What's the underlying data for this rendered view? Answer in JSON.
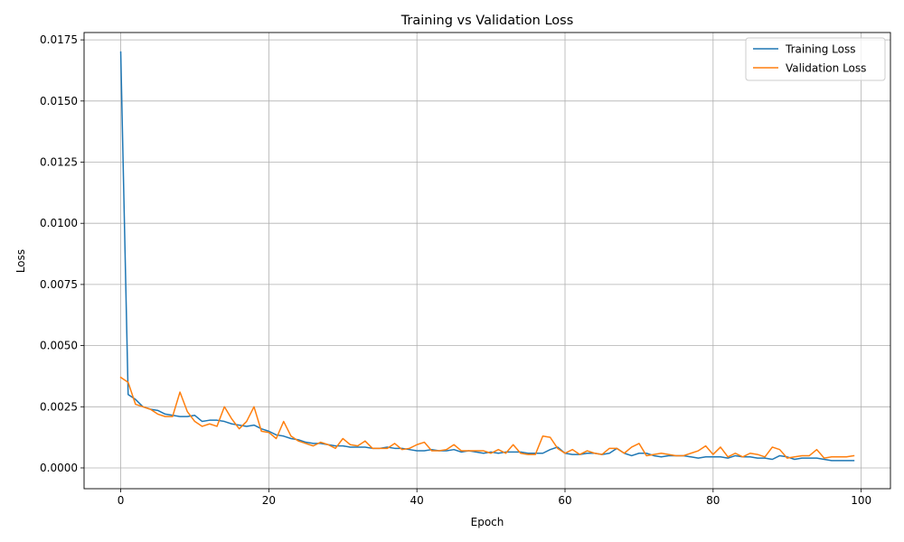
{
  "chart_data": {
    "type": "line",
    "title": "Training vs Validation Loss",
    "xlabel": "Epoch",
    "ylabel": "Loss",
    "xlim": [
      -4.95,
      103.95
    ],
    "ylim": [
      -0.00085,
      0.0178
    ],
    "xticks": [
      0,
      20,
      40,
      60,
      80,
      100
    ],
    "xtick_labels": [
      "0",
      "20",
      "40",
      "60",
      "80",
      "100"
    ],
    "yticks": [
      0,
      0.0025,
      0.005,
      0.0075,
      0.01,
      0.0125,
      0.015,
      0.0175
    ],
    "ytick_labels": [
      "0.0000",
      "0.0025",
      "0.0050",
      "0.0075",
      "0.0100",
      "0.0125",
      "0.0150",
      "0.0175"
    ],
    "grid": true,
    "legend_position": "top-right",
    "series": [
      {
        "name": "Training Loss",
        "color": "#1f77b4",
        "values": [
          0.017,
          0.003,
          0.0028,
          0.0025,
          0.0024,
          0.00235,
          0.0022,
          0.00215,
          0.0021,
          0.0021,
          0.00215,
          0.0019,
          0.00195,
          0.00195,
          0.0019,
          0.0018,
          0.00175,
          0.0017,
          0.00175,
          0.0016,
          0.0015,
          0.00135,
          0.0013,
          0.0012,
          0.00115,
          0.00105,
          0.001,
          0.001,
          0.00095,
          0.0009,
          0.0009,
          0.00085,
          0.00085,
          0.00085,
          0.0008,
          0.0008,
          0.00085,
          0.0008,
          0.0008,
          0.00075,
          0.0007,
          0.0007,
          0.00075,
          0.0007,
          0.0007,
          0.00075,
          0.00065,
          0.0007,
          0.00065,
          0.0006,
          0.00065,
          0.0006,
          0.00065,
          0.00065,
          0.00065,
          0.0006,
          0.0006,
          0.0006,
          0.00075,
          0.00085,
          0.0006,
          0.00055,
          0.00055,
          0.0006,
          0.0006,
          0.00055,
          0.0006,
          0.0008,
          0.0006,
          0.0005,
          0.0006,
          0.0006,
          0.0005,
          0.00045,
          0.0005,
          0.0005,
          0.0005,
          0.00045,
          0.0004,
          0.00045,
          0.00045,
          0.00045,
          0.0004,
          0.0005,
          0.00045,
          0.00045,
          0.0004,
          0.0004,
          0.00035,
          0.0005,
          0.00045,
          0.00035,
          0.0004,
          0.0004,
          0.0004,
          0.00035,
          0.0003,
          0.0003,
          0.0003,
          0.0003
        ]
      },
      {
        "name": "Validation Loss",
        "color": "#ff7f0e",
        "values": [
          0.0037,
          0.0035,
          0.0026,
          0.0025,
          0.0024,
          0.0022,
          0.0021,
          0.0021,
          0.0031,
          0.0023,
          0.0019,
          0.0017,
          0.0018,
          0.0017,
          0.0025,
          0.002,
          0.0016,
          0.0019,
          0.0025,
          0.0015,
          0.00145,
          0.0012,
          0.0019,
          0.0013,
          0.0011,
          0.001,
          0.0009,
          0.00105,
          0.00095,
          0.0008,
          0.0012,
          0.00095,
          0.0009,
          0.0011,
          0.0008,
          0.0008,
          0.0008,
          0.001,
          0.00075,
          0.0008,
          0.00095,
          0.00105,
          0.0007,
          0.0007,
          0.00075,
          0.00095,
          0.0007,
          0.0007,
          0.0007,
          0.0007,
          0.0006,
          0.00075,
          0.0006,
          0.00095,
          0.0006,
          0.00055,
          0.00055,
          0.0013,
          0.00125,
          0.0008,
          0.0006,
          0.00075,
          0.00055,
          0.0007,
          0.0006,
          0.00055,
          0.0008,
          0.0008,
          0.0006,
          0.00085,
          0.001,
          0.0005,
          0.00055,
          0.0006,
          0.00055,
          0.0005,
          0.0005,
          0.0006,
          0.0007,
          0.0009,
          0.00055,
          0.00085,
          0.00045,
          0.0006,
          0.00045,
          0.0006,
          0.00055,
          0.00045,
          0.00085,
          0.00075,
          0.0004,
          0.00045,
          0.0005,
          0.0005,
          0.00075,
          0.0004,
          0.00045,
          0.00045,
          0.00045,
          0.0005
        ]
      }
    ]
  }
}
